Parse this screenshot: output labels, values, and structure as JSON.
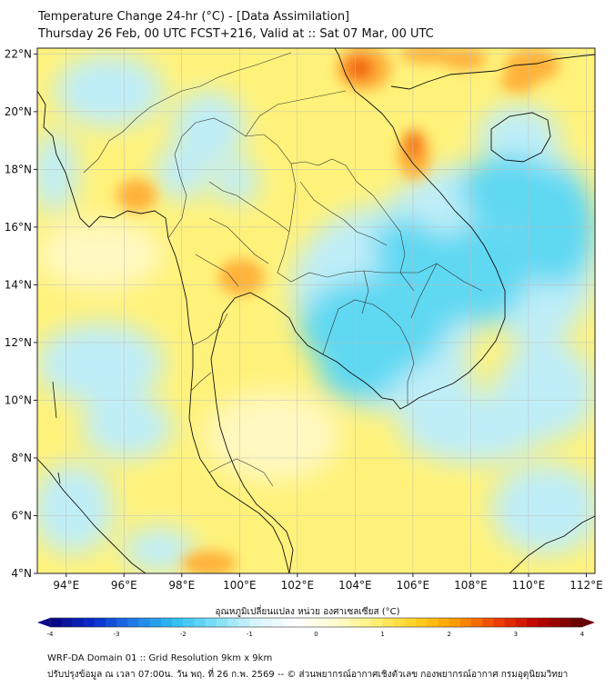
{
  "title": {
    "line1": "Temperature Change 24-hr (°C) - [Data Assimilation]",
    "line2": "Thursday 26 Feb, 00 UTC FCST+216, Valid at :: Sat 07 Mar, 00 UTC"
  },
  "map": {
    "lat_labels": [
      "22°N",
      "20°N",
      "18°N",
      "16°N",
      "14°N",
      "12°N",
      "10°N",
      "8°N",
      "6°N",
      "4°N"
    ],
    "lat_values": [
      22,
      20,
      18,
      16,
      14,
      12,
      10,
      8,
      6,
      4
    ],
    "lon_labels": [
      "94°E",
      "96°E",
      "98°E",
      "100°E",
      "102°E",
      "104°E",
      "106°E",
      "108°E",
      "110°E",
      "112°E"
    ],
    "lon_values": [
      94,
      96,
      98,
      100,
      102,
      104,
      106,
      108,
      110,
      112
    ],
    "lat_range": [
      4,
      22.2
    ],
    "lon_range": [
      93,
      112.3
    ],
    "gridlines": true
  },
  "colorbar": {
    "title": "อุณหภูมิเปลี่ยนแปลง หน่วย องศาเซลเซียส (°C)",
    "tick_labels": [
      "-4",
      "-3",
      "-2",
      "-1",
      "0",
      "1",
      "2",
      "3",
      "4"
    ],
    "tick_values": [
      -4,
      -3,
      -2,
      -1,
      0,
      1,
      2,
      3,
      4
    ],
    "range": [
      -4,
      4
    ],
    "colors": [
      "#08088a",
      "#0a2fd0",
      "#1f7fe8",
      "#30c0f0",
      "#7fe0f8",
      "#d8f4fb",
      "#ffffff",
      "#fffcd0",
      "#fff070",
      "#ffd020",
      "#ff9a00",
      "#f04000",
      "#c00000",
      "#6a0000"
    ]
  },
  "footer": {
    "line1": "WRF-DA Domain 01 :: Grid Resolution 9km x 9km",
    "line2": "ปรับปรุงข้อมูล ณ เวลา 07:00น. วัน พฤ. ที่ 26 ก.พ. 2569 -- © ส่วนพยากรณ์อากาศเชิงตัวเลข กองพยากรณ์อากาศ กรมอุตุนิยมวิทยา"
  },
  "field_colors": {
    "yellow": "#fff27a",
    "light_yellow": "#fff8c0",
    "cyan": "#5fd8f2",
    "light_cyan": "#bfeef8",
    "orange": "#ffb23a",
    "red_orange": "#f26a10",
    "coast": "#111111",
    "border": "#333333"
  }
}
